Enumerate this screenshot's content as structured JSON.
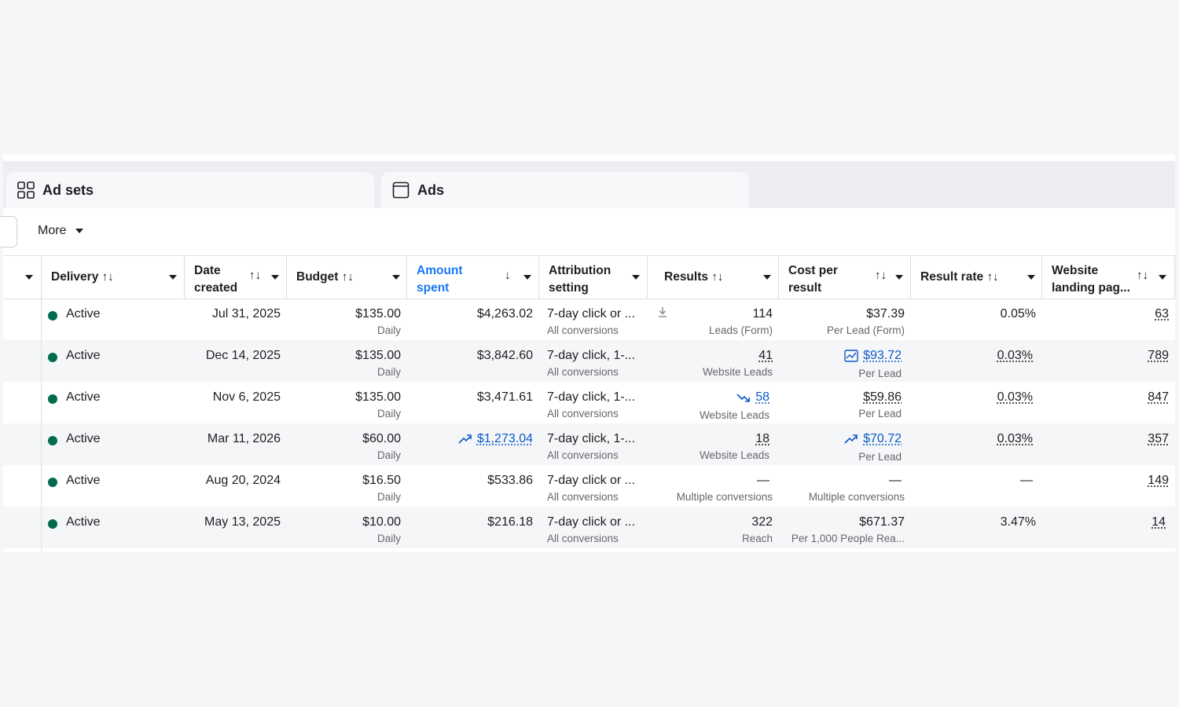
{
  "tabs": [
    {
      "label": "Ad sets",
      "icon": "grid-icon"
    },
    {
      "label": "Ads",
      "icon": "ad-window-icon"
    }
  ],
  "toolbar": {
    "more_label": "More"
  },
  "columns": {
    "delivery": "Delivery",
    "date_created_1": "Date",
    "date_created_2": "created",
    "budget": "Budget",
    "amount_spent_1": "Amount",
    "amount_spent_2": "spent",
    "attribution_1": "Attribution",
    "attribution_2": "setting",
    "results": "Results",
    "cost_per_result_1": "Cost per",
    "cost_per_result_2": "result",
    "result_rate": "Result rate",
    "website_landing_1": "Website",
    "website_landing_2": "landing pag..."
  },
  "sort_icon": "↑↓",
  "sort_desc_icon": "↓",
  "rows": [
    {
      "delivery": "Active",
      "date": "Jul 31, 2025",
      "budget": "$135.00",
      "budget_type": "Daily",
      "spent": "$4,263.02",
      "attribution": "7-day click or ...",
      "attribution_sub": "All conversions",
      "results": "114",
      "results_sub": "Leads (Form)",
      "cost": "$37.39",
      "cost_sub": "Per Lead (Form)",
      "rate": "0.05%",
      "landing": "63"
    },
    {
      "delivery": "Active",
      "date": "Dec 14, 2025",
      "budget": "$135.00",
      "budget_type": "Daily",
      "spent": "$3,842.60",
      "attribution": "7-day click, 1-...",
      "attribution_sub": "All conversions",
      "results": "41",
      "results_sub": "Website Leads",
      "cost": "$93.72",
      "cost_sub": "Per Lead",
      "rate": "0.03%",
      "landing": "789"
    },
    {
      "delivery": "Active",
      "date": "Nov 6, 2025",
      "budget": "$135.00",
      "budget_type": "Daily",
      "spent": "$3,471.61",
      "attribution": "7-day click, 1-...",
      "attribution_sub": "All conversions",
      "results": "58",
      "results_sub": "Website Leads",
      "cost": "$59.86",
      "cost_sub": "Per Lead",
      "rate": "0.03%",
      "landing": "847"
    },
    {
      "delivery": "Active",
      "date": "Mar 11, 2026",
      "budget": "$60.00",
      "budget_type": "Daily",
      "spent": "$1,273.04",
      "attribution": "7-day click, 1-...",
      "attribution_sub": "All conversions",
      "results": "18",
      "results_sub": "Website Leads",
      "cost": "$70.72",
      "cost_sub": "Per Lead",
      "rate": "0.03%",
      "landing": "357"
    },
    {
      "delivery": "Active",
      "date": "Aug 20, 2024",
      "budget": "$16.50",
      "budget_type": "Daily",
      "spent": "$533.86",
      "attribution": "7-day click or ...",
      "attribution_sub": "All conversions",
      "results": "—",
      "results_sub": "Multiple conversions",
      "cost": "—",
      "cost_sub": "Multiple conversions",
      "rate": "—",
      "landing": "149"
    },
    {
      "delivery": "Active",
      "date": "May 13, 2025",
      "budget": "$10.00",
      "budget_type": "Daily",
      "spent": "$216.18",
      "attribution": "7-day click or ...",
      "attribution_sub": "All conversions",
      "results": "322",
      "results_sub": "Reach",
      "cost": "$671.37",
      "cost_sub": "Per 1,000 People Rea...",
      "rate": "3.47%",
      "landing": "14"
    }
  ],
  "colors": {
    "active_dot": "#006b4f",
    "link": "#0a58ca",
    "header_accent": "#1877f2"
  }
}
